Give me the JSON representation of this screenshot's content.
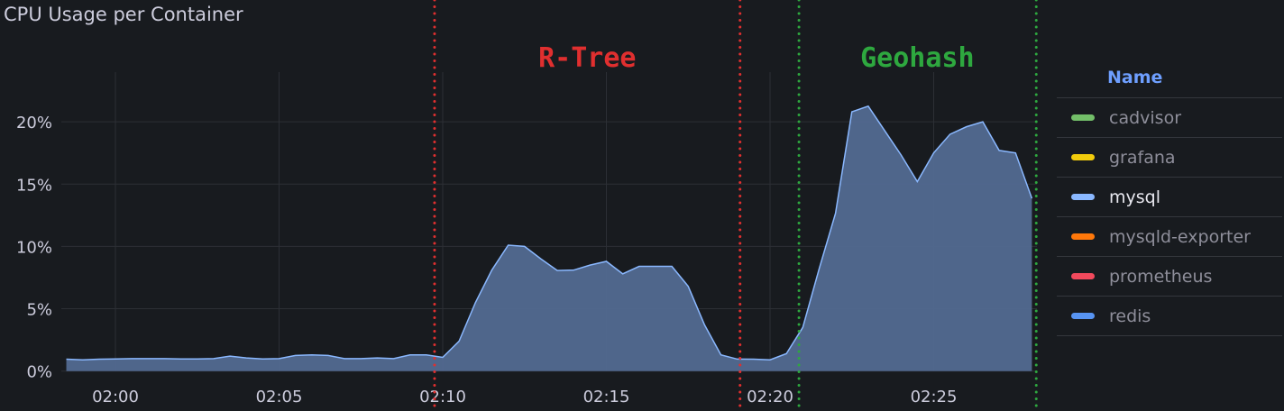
{
  "chart_data": {
    "type": "area",
    "title": "CPU Usage per Container",
    "xlabel": "",
    "ylabel": "",
    "x_ticks": [
      "02:00",
      "02:05",
      "02:10",
      "02:15",
      "02:20",
      "02:25"
    ],
    "y_ticks": [
      "0%",
      "5%",
      "10%",
      "15%",
      "20%"
    ],
    "ylim": [
      0,
      24
    ],
    "y_unit": "%",
    "grid": true,
    "legend_placement": "right",
    "legend_header": "Name",
    "legend": [
      {
        "name": "cadvisor",
        "color": "#73bf69"
      },
      {
        "name": "grafana",
        "color": "#f2cc0c"
      },
      {
        "name": "mysql",
        "color": "#8ab8ff",
        "highlighted": true
      },
      {
        "name": "mysqld-exporter",
        "color": "#ff780a"
      },
      {
        "name": "prometheus",
        "color": "#f2495c"
      },
      {
        "name": "redis",
        "color": "#5794f2"
      }
    ],
    "series": [
      {
        "name": "mysql",
        "color": "#8ab8ff",
        "fill": "#526a91",
        "x": [
          "01:58:30",
          "01:59:00",
          "01:59:30",
          "02:00:00",
          "02:00:30",
          "02:01:00",
          "02:01:30",
          "02:02:00",
          "02:02:30",
          "02:03:00",
          "02:03:30",
          "02:04:00",
          "02:04:30",
          "02:05:00",
          "02:05:30",
          "02:06:00",
          "02:06:30",
          "02:07:00",
          "02:07:30",
          "02:08:00",
          "02:08:30",
          "02:09:00",
          "02:09:30",
          "02:10:00",
          "02:10:30",
          "02:11:00",
          "02:11:30",
          "02:12:00",
          "02:12:30",
          "02:13:00",
          "02:13:30",
          "02:14:00",
          "02:14:30",
          "02:15:00",
          "02:15:30",
          "02:16:00",
          "02:16:30",
          "02:17:00",
          "02:17:30",
          "02:18:00",
          "02:18:30",
          "02:19:00",
          "02:19:30",
          "02:20:00",
          "02:20:30",
          "02:21:00",
          "02:21:30",
          "02:22:00",
          "02:22:30",
          "02:23:00",
          "02:23:30",
          "02:24:00",
          "02:24:30",
          "02:25:00",
          "02:25:30",
          "02:26:00",
          "02:26:30",
          "02:27:00",
          "02:27:30",
          "02:28:00"
        ],
        "values": [
          0.95,
          0.9,
          0.95,
          0.97,
          1.0,
          1.0,
          1.0,
          0.97,
          0.97,
          1.0,
          1.2,
          1.05,
          0.97,
          1.0,
          1.25,
          1.3,
          1.25,
          1.0,
          1.0,
          1.05,
          1.0,
          1.3,
          1.3,
          1.1,
          2.4,
          5.5,
          8.1,
          10.1,
          10.0,
          9.0,
          8.07,
          8.1,
          8.5,
          8.8,
          7.8,
          8.4,
          8.4,
          8.4,
          6.8,
          3.7,
          1.3,
          0.96,
          0.95,
          0.9,
          1.4,
          3.5,
          8.2,
          12.65,
          20.8,
          21.25,
          19.3,
          17.35,
          15.2,
          17.5,
          19.0,
          19.6,
          20.0,
          17.7,
          17.5,
          13.85
        ]
      }
    ],
    "annotations": [
      {
        "time": "02:09:45",
        "color": "#e02f2f"
      },
      {
        "time": "02:19:05",
        "color": "#e02f2f"
      },
      {
        "time": "02:20:53",
        "color": "#2ea83f"
      },
      {
        "time": "02:28:08",
        "color": "#2ea83f"
      }
    ],
    "annotation_labels": [
      {
        "text": "R-Tree",
        "color": "#e02f2f",
        "time": "02:14:25"
      },
      {
        "text": "Geohash",
        "color": "#2ea83f",
        "time": "02:24:30"
      }
    ]
  }
}
